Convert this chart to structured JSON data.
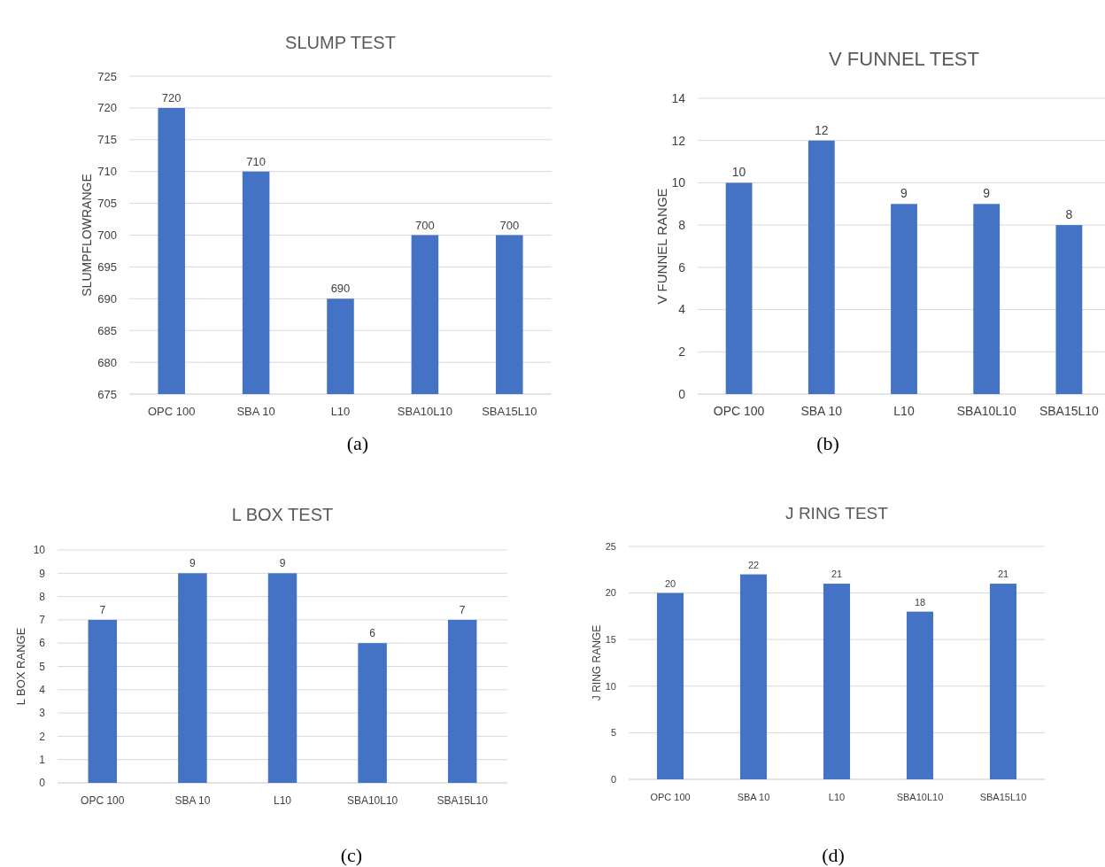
{
  "chart_data": [
    {
      "type": "bar",
      "title": "SLUMP TEST",
      "ylabel": "SLUMPFLOWRANGE",
      "categories": [
        "OPC 100",
        "SBA 10",
        "L10",
        "SBA10L10",
        "SBA15L10"
      ],
      "values": [
        720,
        710,
        690,
        700,
        700
      ],
      "color": "#4472c4",
      "ylim": [
        675,
        725
      ],
      "yticks": [
        675,
        680,
        685,
        690,
        695,
        700,
        705,
        710,
        715,
        720,
        725
      ],
      "grid": "y",
      "data_labels": true,
      "annotations": [
        "(a)"
      ]
    },
    {
      "type": "bar",
      "title": "V FUNNEL TEST",
      "ylabel": "V FUNNEL RANGE",
      "categories": [
        "OPC 100",
        "SBA 10",
        "L10",
        "SBA10L10",
        "SBA15L10"
      ],
      "values": [
        10,
        12,
        9,
        9,
        8
      ],
      "color": "#4472c4",
      "ylim": [
        0,
        14
      ],
      "yticks": [
        0,
        2,
        4,
        6,
        8,
        10,
        12,
        14
      ],
      "grid": "y",
      "data_labels": true,
      "annotations": [
        "(b)"
      ]
    },
    {
      "type": "bar",
      "title": "L BOX TEST",
      "ylabel": "L BOX RANGE",
      "categories": [
        "OPC 100",
        "SBA 10",
        "L10",
        "SBA10L10",
        "SBA15L10"
      ],
      "values": [
        7,
        9,
        9,
        6,
        7
      ],
      "color": "#4472c4",
      "ylim": [
        0,
        10
      ],
      "yticks": [
        0,
        1,
        2,
        3,
        4,
        5,
        6,
        7,
        8,
        9,
        10
      ],
      "grid": "y",
      "data_labels": true,
      "annotations": [
        "(c)"
      ]
    },
    {
      "type": "bar",
      "title": "J RING TEST",
      "ylabel": "J RING RANGE",
      "categories": [
        "OPC 100",
        "SBA 10",
        "L10",
        "SBA10L10",
        "SBA15L10"
      ],
      "values": [
        20,
        22,
        21,
        18,
        21
      ],
      "color": "#4472c4",
      "ylim": [
        0,
        25
      ],
      "yticks": [
        0,
        5,
        10,
        15,
        20,
        25
      ],
      "grid": "y",
      "data_labels": true,
      "annotations": [
        "(d)"
      ]
    }
  ]
}
